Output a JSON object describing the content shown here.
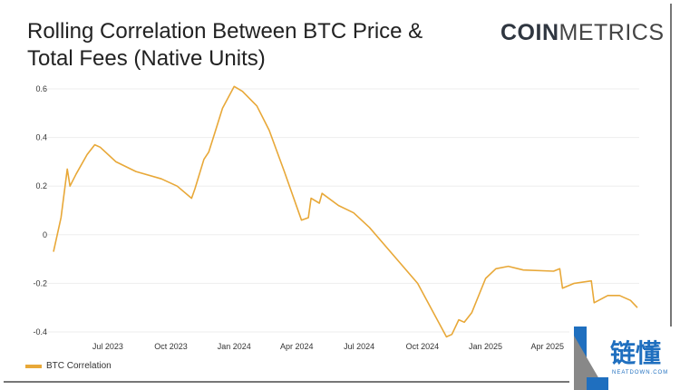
{
  "title": "Rolling Correlation Between BTC Price & Total Fees (Native Units)",
  "logo": {
    "bold": "COIN",
    "light": "METRICS"
  },
  "watermark": {
    "cn": "链懂",
    "en": "NEATDOWN.COM"
  },
  "chart_data": {
    "type": "line",
    "title": "Rolling Correlation Between BTC Price & Total Fees (Native Units)",
    "xlabel": "",
    "ylabel": "",
    "xlim": [
      "2023-04-13",
      "2025-08-10"
    ],
    "ylim": [
      -0.4,
      0.6
    ],
    "grid": true,
    "legend_position": "bottom-left",
    "y_ticks": [
      "0.6",
      "0.4",
      "0.2",
      "0",
      "-0.2",
      "-0.4"
    ],
    "x_ticks": [
      {
        "label": "Jul 2023",
        "date": "2023-07-01"
      },
      {
        "label": "Oct 2023",
        "date": "2023-10-01"
      },
      {
        "label": "Jan 2024",
        "date": "2024-01-01"
      },
      {
        "label": "Apr 2024",
        "date": "2024-04-01"
      },
      {
        "label": "Jul 2024",
        "date": "2024-07-01"
      },
      {
        "label": "Oct 2024",
        "date": "2024-10-01"
      },
      {
        "label": "Jan 2025",
        "date": "2025-01-01"
      },
      {
        "label": "Apr 2025",
        "date": "2025-04-01"
      }
    ],
    "series": [
      {
        "name": "BTC Correlation",
        "color": "#e8a838",
        "points": [
          [
            "2023-04-13",
            -0.07
          ],
          [
            "2023-04-24",
            0.07
          ],
          [
            "2023-05-03",
            0.27
          ],
          [
            "2023-05-07",
            0.2
          ],
          [
            "2023-05-16",
            0.25
          ],
          [
            "2023-06-01",
            0.33
          ],
          [
            "2023-06-12",
            0.37
          ],
          [
            "2023-06-20",
            0.36
          ],
          [
            "2023-07-13",
            0.3
          ],
          [
            "2023-08-11",
            0.26
          ],
          [
            "2023-09-17",
            0.23
          ],
          [
            "2023-10-10",
            0.2
          ],
          [
            "2023-10-31",
            0.15
          ],
          [
            "2023-11-05",
            0.19
          ],
          [
            "2023-11-18",
            0.31
          ],
          [
            "2023-11-25",
            0.34
          ],
          [
            "2023-12-04",
            0.42
          ],
          [
            "2023-12-15",
            0.52
          ],
          [
            "2024-01-01",
            0.61
          ],
          [
            "2024-01-13",
            0.59
          ],
          [
            "2024-02-03",
            0.53
          ],
          [
            "2024-02-21",
            0.43
          ],
          [
            "2024-03-14",
            0.26
          ],
          [
            "2024-04-08",
            0.06
          ],
          [
            "2024-04-18",
            0.07
          ],
          [
            "2024-04-22",
            0.15
          ],
          [
            "2024-05-04",
            0.13
          ],
          [
            "2024-05-08",
            0.17
          ],
          [
            "2024-06-01",
            0.12
          ],
          [
            "2024-06-23",
            0.09
          ],
          [
            "2024-07-16",
            0.03
          ],
          [
            "2024-09-24",
            -0.2
          ],
          [
            "2024-11-05",
            -0.42
          ],
          [
            "2024-11-13",
            -0.41
          ],
          [
            "2024-11-23",
            -0.35
          ],
          [
            "2024-12-01",
            -0.36
          ],
          [
            "2024-12-12",
            -0.32
          ],
          [
            "2025-01-01",
            -0.18
          ],
          [
            "2025-01-16",
            -0.14
          ],
          [
            "2025-02-03",
            -0.13
          ],
          [
            "2025-02-25",
            -0.145
          ],
          [
            "2025-04-10",
            -0.15
          ],
          [
            "2025-04-19",
            -0.14
          ],
          [
            "2025-04-23",
            -0.22
          ],
          [
            "2025-05-10",
            -0.2
          ],
          [
            "2025-06-04",
            -0.19
          ],
          [
            "2025-06-08",
            -0.28
          ],
          [
            "2025-06-28",
            -0.25
          ],
          [
            "2025-07-15",
            -0.25
          ],
          [
            "2025-07-31",
            -0.27
          ],
          [
            "2025-08-10",
            -0.3
          ]
        ]
      }
    ]
  }
}
